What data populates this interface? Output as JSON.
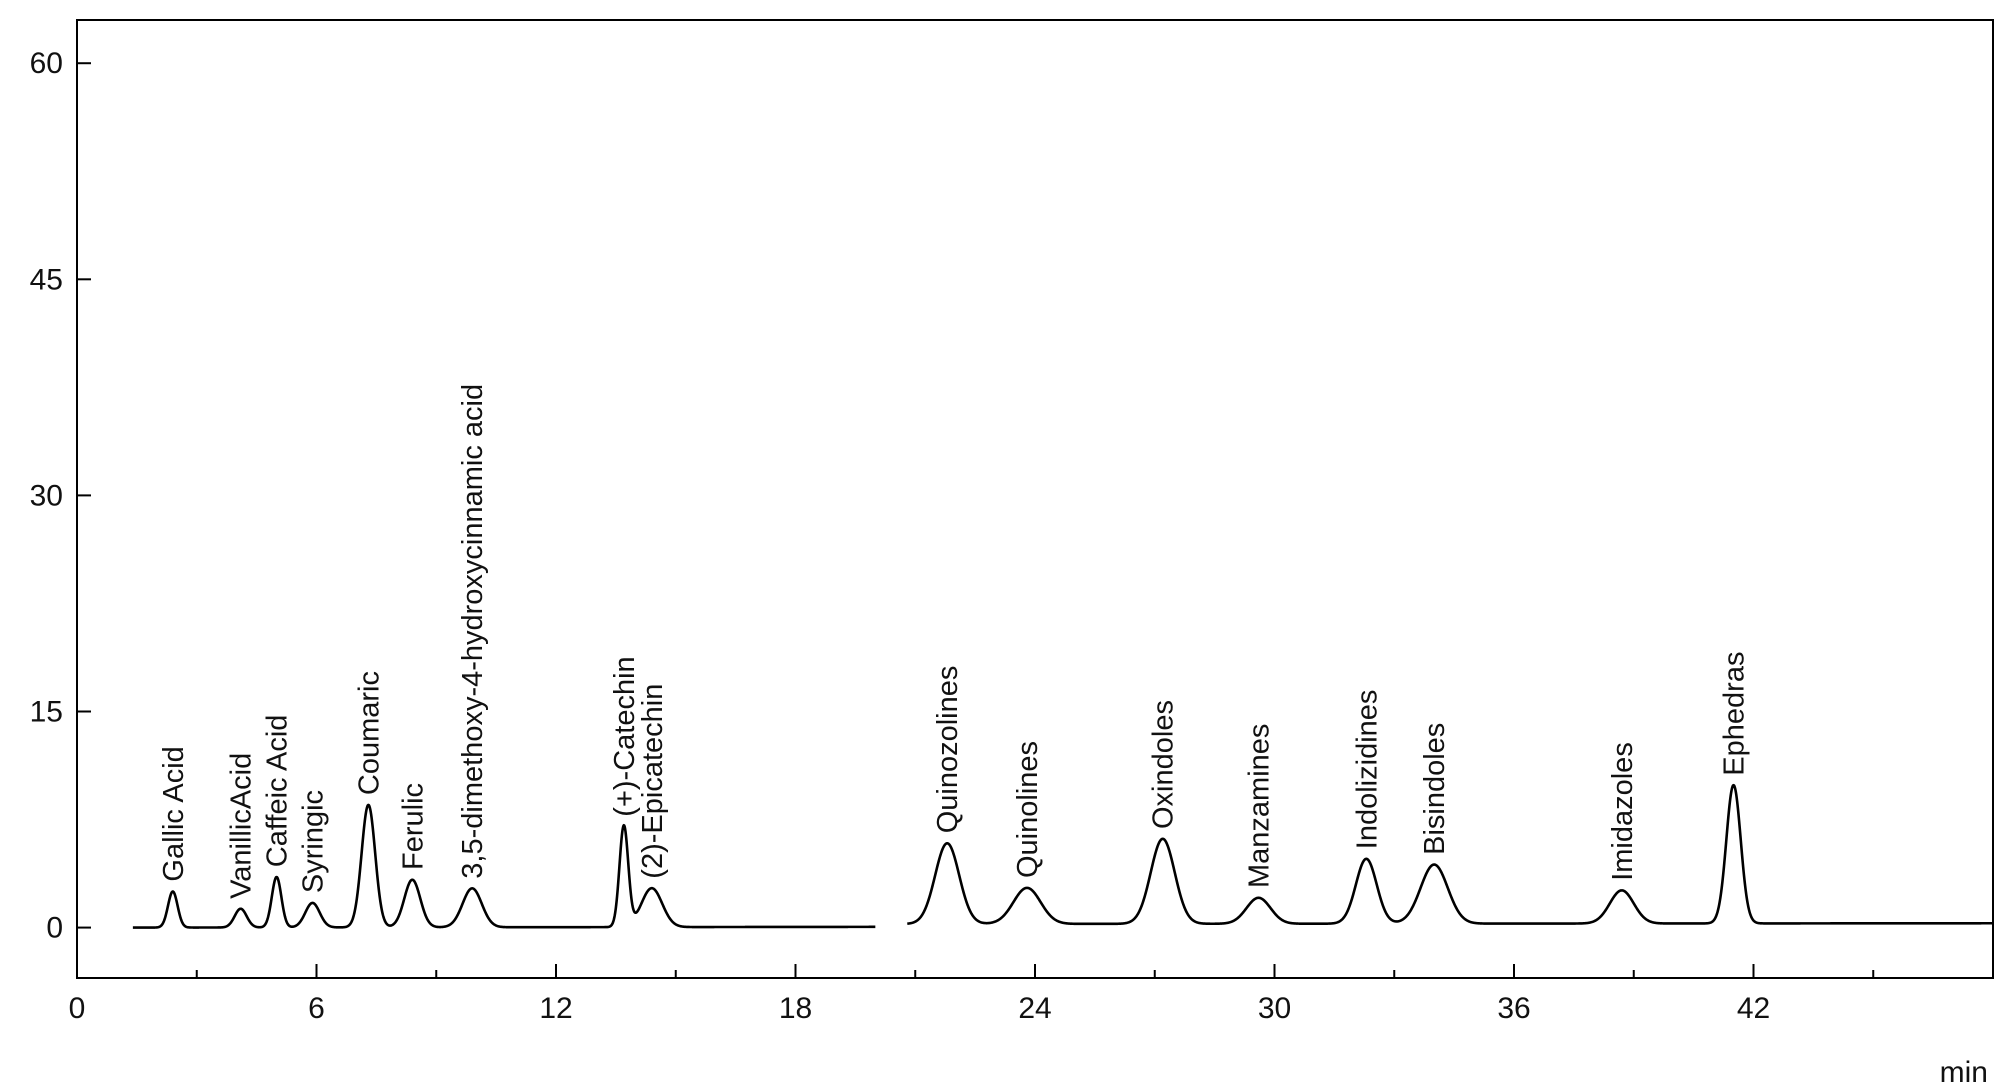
{
  "chart_data": {
    "type": "line",
    "title": "",
    "xlabel": "min",
    "ylabel": "",
    "xlim": [
      0,
      48
    ],
    "ylim": [
      -3.5,
      63
    ],
    "x_ticks": [
      0,
      6,
      12,
      18,
      24,
      30,
      36,
      42
    ],
    "y_ticks": [
      0,
      15,
      30,
      45,
      60
    ],
    "grid": false,
    "legend": "none",
    "line_color": "#000000",
    "series": [
      {
        "x_range": [
          1.4,
          20.0
        ],
        "baseline": 0.0,
        "baseline_end": 0.05,
        "peaks": [
          {
            "label": "Gallic Acid",
            "rt": 2.4,
            "height": 2.5,
            "width": 0.12
          },
          {
            "label": "VanillicAcid",
            "rt": 4.1,
            "height": 1.3,
            "width": 0.15
          },
          {
            "label": "Caffeic Acid",
            "rt": 5.0,
            "height": 3.5,
            "width": 0.12
          },
          {
            "label": "Syringic",
            "rt": 5.9,
            "height": 1.7,
            "width": 0.18
          },
          {
            "label": "Coumaric",
            "rt": 7.3,
            "height": 8.5,
            "width": 0.17
          },
          {
            "label": "Ferulic",
            "rt": 8.4,
            "height": 3.3,
            "width": 0.2
          },
          {
            "label": "3,5-dimethoxy-4-hydroxycinnamic acid",
            "rt": 9.9,
            "height": 2.7,
            "width": 0.24
          },
          {
            "label": "(+)-Catechin",
            "rt": 13.7,
            "height": 7.0,
            "width": 0.11
          },
          {
            "label": "(2)-Epicatechin",
            "rt": 14.4,
            "height": 2.7,
            "width": 0.26
          }
        ]
      },
      {
        "x_range": [
          20.8,
          48.0
        ],
        "baseline": 0.25,
        "baseline_end": 0.3,
        "peaks": [
          {
            "label": "Quinozolines",
            "rt": 21.8,
            "height": 5.6,
            "width": 0.3
          },
          {
            "label": "Quinolines",
            "rt": 23.8,
            "height": 2.5,
            "width": 0.34
          },
          {
            "label": "Oxindoles",
            "rt": 27.2,
            "height": 5.9,
            "width": 0.3
          },
          {
            "label": "Manzamines",
            "rt": 29.6,
            "height": 1.8,
            "width": 0.3
          },
          {
            "label": "Indolizidines",
            "rt": 32.3,
            "height": 4.5,
            "width": 0.26
          },
          {
            "label": "Bisindoles",
            "rt": 34.0,
            "height": 4.1,
            "width": 0.34
          },
          {
            "label": "Imidazoles",
            "rt": 38.7,
            "height": 2.3,
            "width": 0.3
          },
          {
            "label": "Ephedras",
            "rt": 41.5,
            "height": 9.6,
            "width": 0.18
          }
        ]
      }
    ]
  }
}
